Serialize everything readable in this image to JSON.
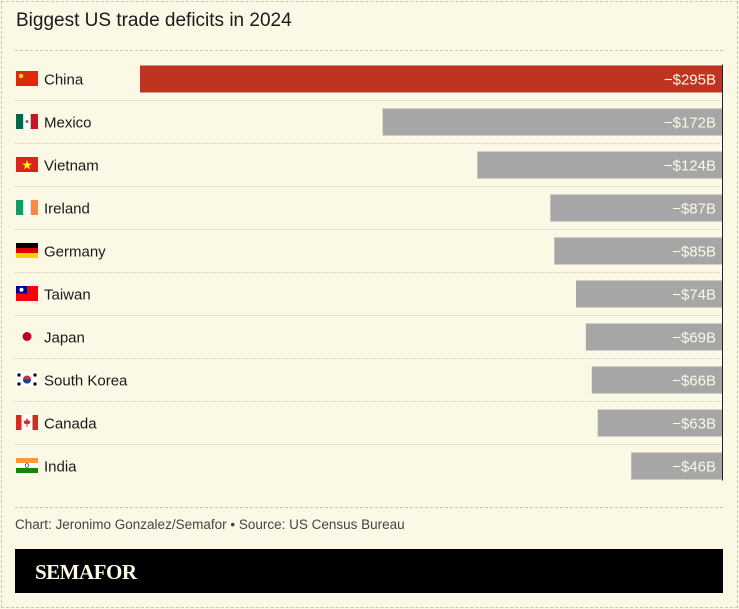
{
  "chart_data": {
    "type": "bar",
    "orientation": "horizontal",
    "title": "Biggest US trade deficits in 2024",
    "categories": [
      "China",
      "Mexico",
      "Vietnam",
      "Ireland",
      "Germany",
      "Taiwan",
      "Japan",
      "South Korea",
      "Canada",
      "India"
    ],
    "flags": [
      "china-flag",
      "mexico-flag",
      "vietnam-flag",
      "ireland-flag",
      "germany-flag",
      "taiwan-flag",
      "japan-flag",
      "south-korea-flag",
      "canada-flag",
      "india-flag"
    ],
    "values": [
      -295,
      -172,
      -124,
      -87,
      -85,
      -74,
      -69,
      -66,
      -63,
      -46
    ],
    "labels": [
      "−$295B",
      "−$172B",
      "−$124B",
      "−$87B",
      "−$85B",
      "−$74B",
      "−$69B",
      "−$66B",
      "−$63B",
      "−$46B"
    ],
    "unit": "USD billions",
    "highlight_color": "#bf3321",
    "bar_color": "#a6a6a6",
    "grid": false
  },
  "footer": {
    "source": "Chart: Jeronimo Gonzalez/Semafor • Source: US Census Bureau",
    "brand": "SEMAFOR"
  }
}
